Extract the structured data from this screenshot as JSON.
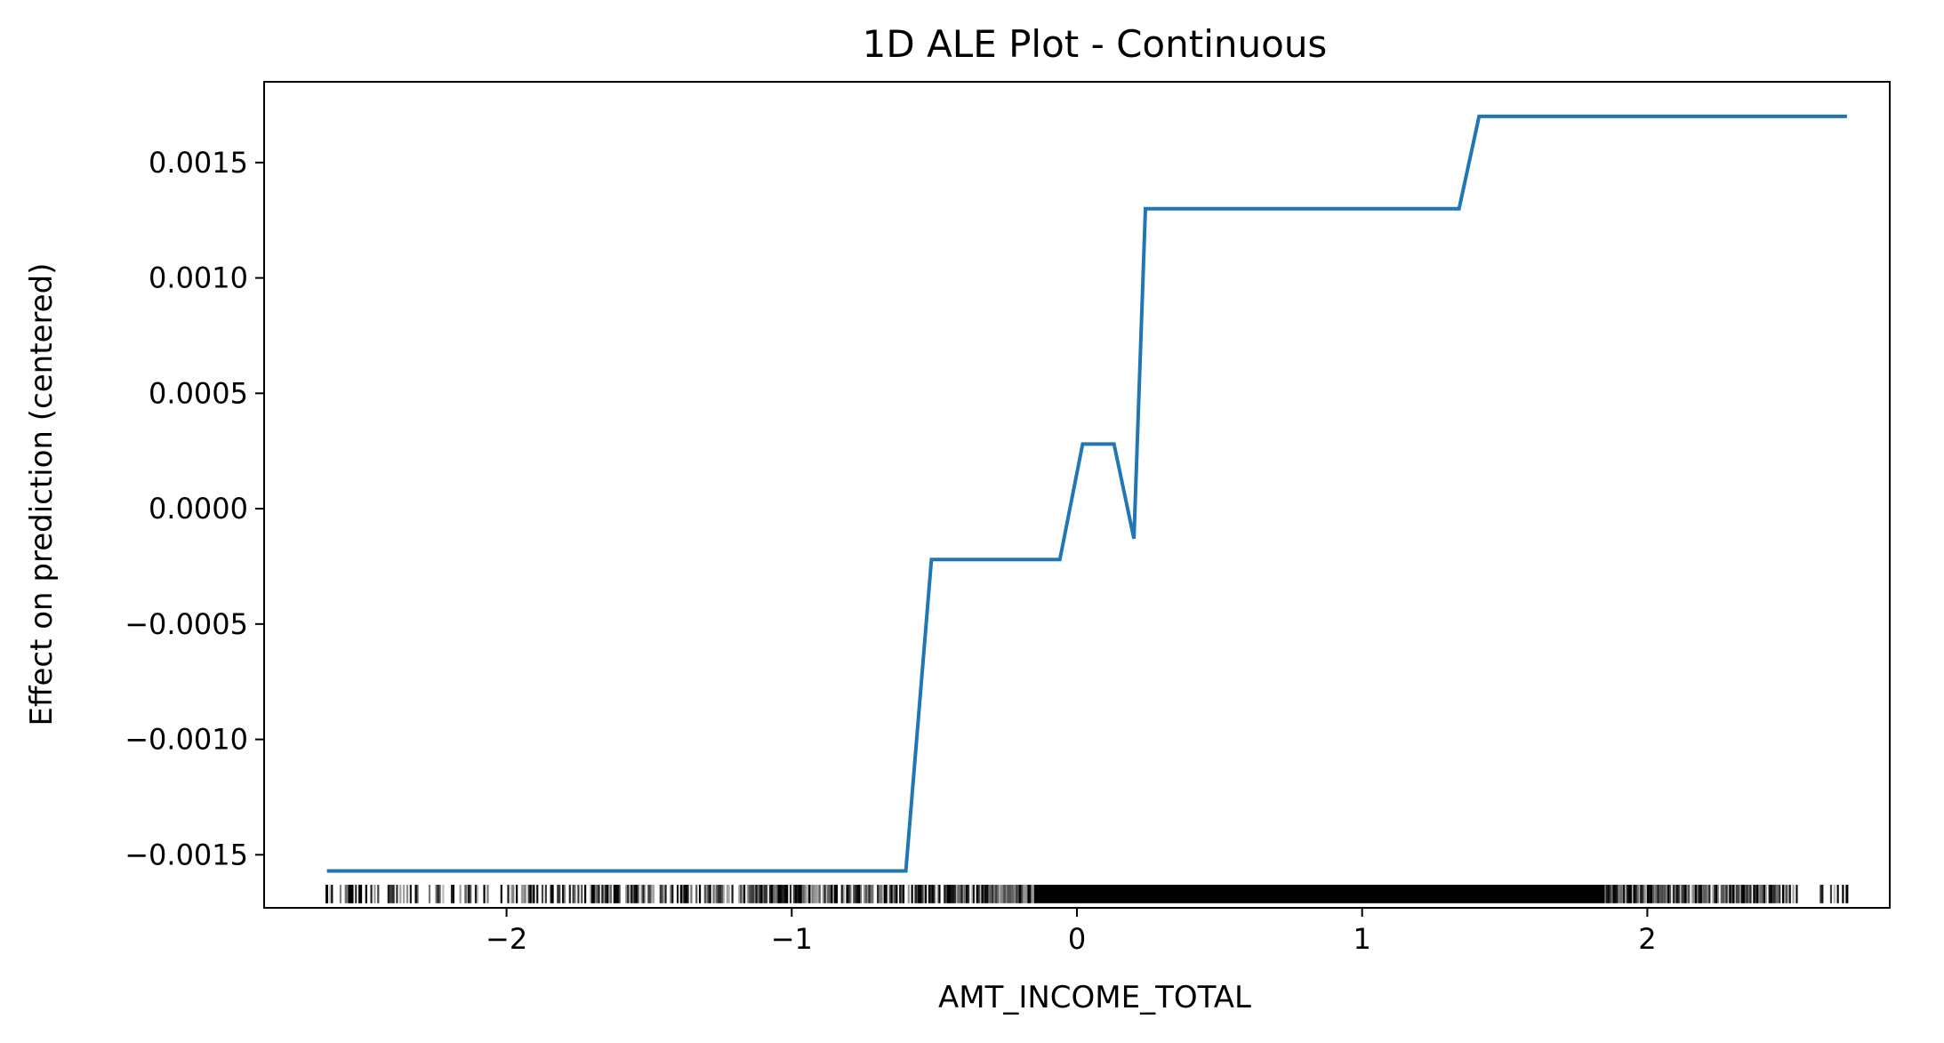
{
  "chart_data": {
    "type": "line",
    "title": "1D ALE Plot - Continuous",
    "xlabel": "AMT_INCOME_TOTAL",
    "ylabel": "Effect on prediction (centered)",
    "xlim": [
      -2.85,
      2.85
    ],
    "ylim": [
      -0.00173,
      0.00185
    ],
    "x_ticks": [
      -2,
      -1,
      0,
      1,
      2
    ],
    "x_tick_labels": [
      "−2",
      "−1",
      "0",
      "1",
      "2"
    ],
    "y_ticks": [
      0.0015,
      0.001,
      0.0005,
      0.0,
      -0.0005,
      -0.001,
      -0.0015
    ],
    "y_tick_labels": [
      "0.0015",
      "0.0010",
      "0.0005",
      "0.0000",
      "−0.0005",
      "−0.0010",
      "−0.0015"
    ],
    "grid": false,
    "series": [
      {
        "color": "#1f77b4",
        "x": [
          -2.63,
          -0.6,
          -0.51,
          -0.06,
          0.02,
          0.13,
          0.2,
          0.24,
          1.34,
          1.41,
          2.7
        ],
        "y": [
          -0.00157,
          -0.00157,
          -0.00022,
          -0.00022,
          0.00028,
          0.00028,
          -0.00013,
          0.0013,
          0.0013,
          0.0017,
          0.0017
        ]
      }
    ],
    "rug": {
      "color": "#000000",
      "x_min": -2.63,
      "x_max": 2.7,
      "dense_from": -0.15,
      "dense_to": 1.85,
      "gap_from": 2.53,
      "gap_to": 2.6
    }
  }
}
